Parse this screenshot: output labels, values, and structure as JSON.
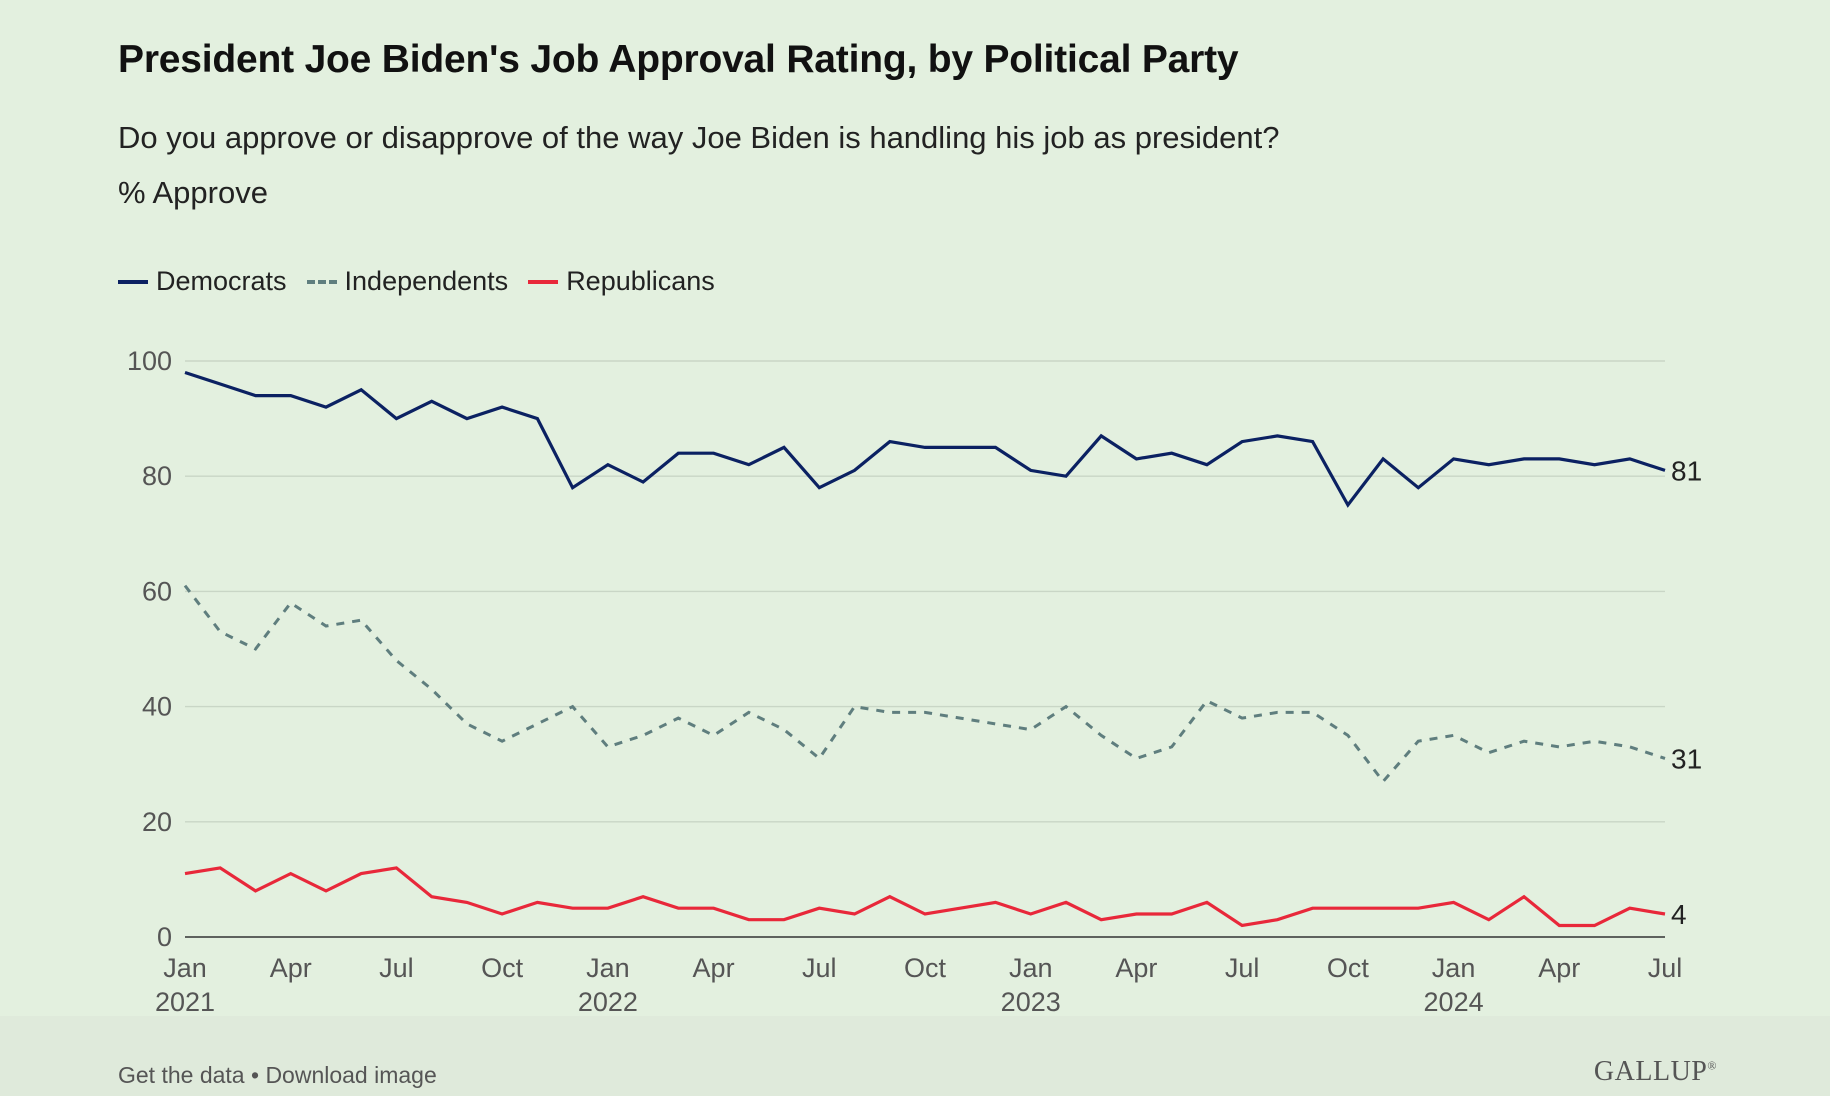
{
  "chart_data": {
    "type": "line",
    "title": "President Joe Biden's Job Approval Rating, by Political Party",
    "subtitle": "Do you approve or disapprove of the way Joe Biden is handling his job as president?",
    "ylabel": "% Approve",
    "xlabel": "",
    "ylim": [
      0,
      100
    ],
    "y_ticks": [
      0,
      20,
      40,
      60,
      80,
      100
    ],
    "x_range": [
      "2021-01",
      "2024-07"
    ],
    "x_ticks": [
      {
        "x": "2021-01",
        "label": "Jan",
        "year": "2021"
      },
      {
        "x": "2021-04",
        "label": "Apr",
        "year": ""
      },
      {
        "x": "2021-07",
        "label": "Jul",
        "year": ""
      },
      {
        "x": "2021-10",
        "label": "Oct",
        "year": ""
      },
      {
        "x": "2022-01",
        "label": "Jan",
        "year": "2022"
      },
      {
        "x": "2022-04",
        "label": "Apr",
        "year": ""
      },
      {
        "x": "2022-07",
        "label": "Jul",
        "year": ""
      },
      {
        "x": "2022-10",
        "label": "Oct",
        "year": ""
      },
      {
        "x": "2023-01",
        "label": "Jan",
        "year": "2023"
      },
      {
        "x": "2023-04",
        "label": "Apr",
        "year": ""
      },
      {
        "x": "2023-07",
        "label": "Jul",
        "year": ""
      },
      {
        "x": "2023-10",
        "label": "Oct",
        "year": ""
      },
      {
        "x": "2024-01",
        "label": "Jan",
        "year": "2024"
      },
      {
        "x": "2024-04",
        "label": "Apr",
        "year": ""
      },
      {
        "x": "2024-07",
        "label": "Jul",
        "year": ""
      }
    ],
    "grid": true,
    "legend_position": "top-left",
    "series": [
      {
        "name": "Democrats",
        "color": "#0b2162",
        "style": "solid",
        "end_label": "81",
        "points": [
          [
            "2021-01",
            98
          ],
          [
            "2021-02",
            96
          ],
          [
            "2021-03",
            94
          ],
          [
            "2021-04",
            94
          ],
          [
            "2021-05",
            92
          ],
          [
            "2021-06",
            95
          ],
          [
            "2021-07",
            90
          ],
          [
            "2021-08",
            93
          ],
          [
            "2021-09",
            90
          ],
          [
            "2021-10",
            92
          ],
          [
            "2021-11",
            90
          ],
          [
            "2021-12",
            78
          ],
          [
            "2022-01",
            82
          ],
          [
            "2022-02",
            79
          ],
          [
            "2022-03",
            84
          ],
          [
            "2022-04",
            84
          ],
          [
            "2022-05",
            82
          ],
          [
            "2022-06",
            85
          ],
          [
            "2022-07",
            78
          ],
          [
            "2022-08",
            81
          ],
          [
            "2022-09",
            86
          ],
          [
            "2022-10",
            85
          ],
          [
            "2022-11",
            85
          ],
          [
            "2022-12",
            85
          ],
          [
            "2023-01",
            81
          ],
          [
            "2023-02",
            80
          ],
          [
            "2023-03",
            87
          ],
          [
            "2023-04",
            83
          ],
          [
            "2023-05",
            84
          ],
          [
            "2023-06",
            82
          ],
          [
            "2023-07",
            86
          ],
          [
            "2023-08",
            87
          ],
          [
            "2023-09",
            86
          ],
          [
            "2023-10",
            75
          ],
          [
            "2023-11",
            83
          ],
          [
            "2023-12",
            78
          ],
          [
            "2024-01",
            83
          ],
          [
            "2024-02",
            82
          ],
          [
            "2024-03",
            83
          ],
          [
            "2024-04",
            83
          ],
          [
            "2024-05",
            82
          ],
          [
            "2024-06",
            83
          ],
          [
            "2024-07",
            81
          ]
        ]
      },
      {
        "name": "Independents",
        "color": "#5f7e7e",
        "style": "dashed",
        "end_label": "31",
        "points": [
          [
            "2021-01",
            61
          ],
          [
            "2021-02",
            53
          ],
          [
            "2021-03",
            50
          ],
          [
            "2021-04",
            58
          ],
          [
            "2021-05",
            54
          ],
          [
            "2021-06",
            55
          ],
          [
            "2021-07",
            48
          ],
          [
            "2021-08",
            43
          ],
          [
            "2021-09",
            37
          ],
          [
            "2021-10",
            34
          ],
          [
            "2021-11",
            37
          ],
          [
            "2021-12",
            40
          ],
          [
            "2022-01",
            33
          ],
          [
            "2022-02",
            35
          ],
          [
            "2022-03",
            38
          ],
          [
            "2022-04",
            35
          ],
          [
            "2022-05",
            39
          ],
          [
            "2022-06",
            36
          ],
          [
            "2022-07",
            31
          ],
          [
            "2022-08",
            40
          ],
          [
            "2022-09",
            39
          ],
          [
            "2022-10",
            39
          ],
          [
            "2022-11",
            38
          ],
          [
            "2022-12",
            37
          ],
          [
            "2023-01",
            36
          ],
          [
            "2023-02",
            40
          ],
          [
            "2023-03",
            35
          ],
          [
            "2023-04",
            31
          ],
          [
            "2023-05",
            33
          ],
          [
            "2023-06",
            41
          ],
          [
            "2023-07",
            38
          ],
          [
            "2023-08",
            39
          ],
          [
            "2023-09",
            39
          ],
          [
            "2023-10",
            35
          ],
          [
            "2023-11",
            27
          ],
          [
            "2023-12",
            34
          ],
          [
            "2024-01",
            35
          ],
          [
            "2024-02",
            32
          ],
          [
            "2024-03",
            34
          ],
          [
            "2024-04",
            33
          ],
          [
            "2024-05",
            34
          ],
          [
            "2024-06",
            33
          ],
          [
            "2024-07",
            31
          ]
        ]
      },
      {
        "name": "Republicans",
        "color": "#e8283a",
        "style": "solid",
        "end_label": "4",
        "points": [
          [
            "2021-01",
            11
          ],
          [
            "2021-02",
            12
          ],
          [
            "2021-03",
            8
          ],
          [
            "2021-04",
            11
          ],
          [
            "2021-05",
            8
          ],
          [
            "2021-06",
            11
          ],
          [
            "2021-07",
            12
          ],
          [
            "2021-08",
            7
          ],
          [
            "2021-09",
            6
          ],
          [
            "2021-10",
            4
          ],
          [
            "2021-11",
            6
          ],
          [
            "2021-12",
            5
          ],
          [
            "2022-01",
            5
          ],
          [
            "2022-02",
            7
          ],
          [
            "2022-03",
            5
          ],
          [
            "2022-04",
            5
          ],
          [
            "2022-05",
            3
          ],
          [
            "2022-06",
            3
          ],
          [
            "2022-07",
            5
          ],
          [
            "2022-08",
            4
          ],
          [
            "2022-09",
            7
          ],
          [
            "2022-10",
            4
          ],
          [
            "2022-11",
            5
          ],
          [
            "2022-12",
            6
          ],
          [
            "2023-01",
            4
          ],
          [
            "2023-02",
            6
          ],
          [
            "2023-03",
            3
          ],
          [
            "2023-04",
            4
          ],
          [
            "2023-05",
            4
          ],
          [
            "2023-06",
            6
          ],
          [
            "2023-07",
            2
          ],
          [
            "2023-08",
            3
          ],
          [
            "2023-09",
            5
          ],
          [
            "2023-10",
            5
          ],
          [
            "2023-11",
            5
          ],
          [
            "2023-12",
            5
          ],
          [
            "2024-01",
            6
          ],
          [
            "2024-02",
            3
          ],
          [
            "2024-03",
            7
          ],
          [
            "2024-04",
            2
          ],
          [
            "2024-05",
            2
          ],
          [
            "2024-06",
            5
          ],
          [
            "2024-07",
            4
          ]
        ]
      }
    ]
  },
  "footer": {
    "get_data": "Get the data",
    "separator": " • ",
    "download": "Download image",
    "logo": "GALLUP",
    "logo_mark": "®"
  }
}
